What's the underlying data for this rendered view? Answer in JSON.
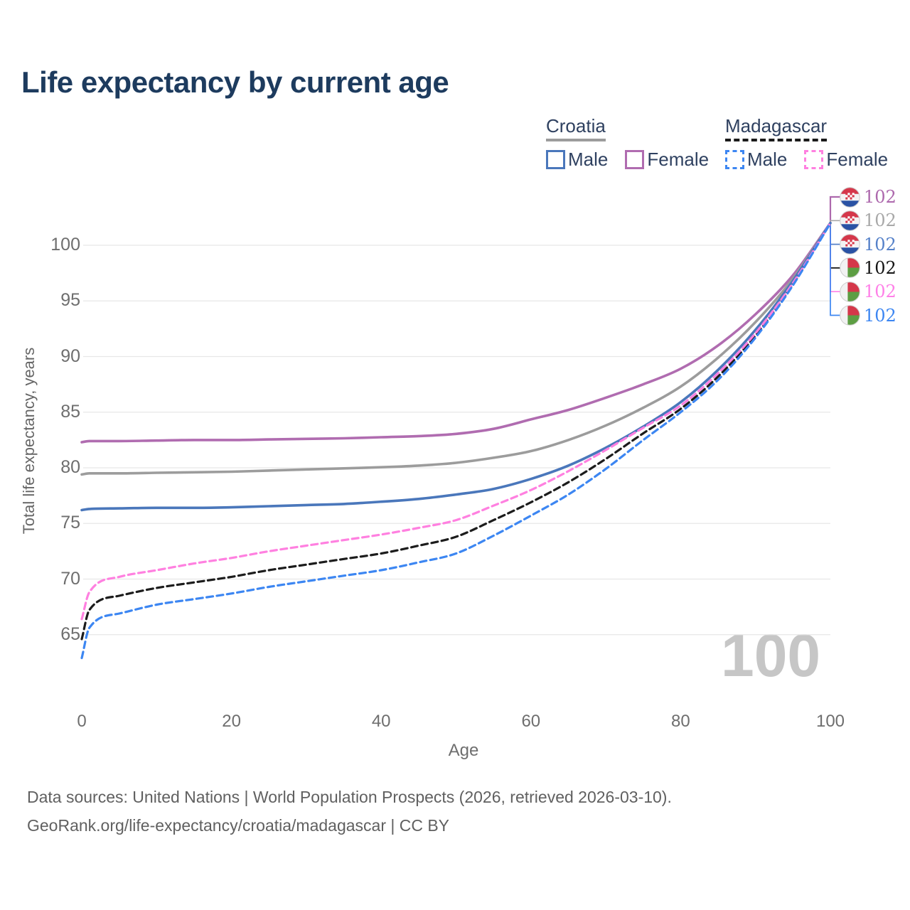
{
  "title": "Life expectancy by current age",
  "legend": {
    "groups": [
      {
        "label": "Croatia",
        "line_style": "solid",
        "underline_color": "#9c9c9c",
        "items": [
          {
            "label": "Male",
            "series": "croatia_male"
          },
          {
            "label": "Female",
            "series": "croatia_female"
          }
        ]
      },
      {
        "label": "Madagascar",
        "line_style": "dashed",
        "underline_color": "#1a1a1a",
        "items": [
          {
            "label": "Male",
            "series": "madagascar_male"
          },
          {
            "label": "Female",
            "series": "madagascar_female"
          }
        ]
      }
    ]
  },
  "y_axis": {
    "label": "Total life expectancy, years",
    "ticks": [
      100,
      95,
      90,
      85,
      80,
      75,
      70,
      65
    ]
  },
  "x_axis": {
    "label": "Age",
    "ticks": [
      0,
      20,
      40,
      60,
      80,
      100
    ]
  },
  "age_counter": "100",
  "end_labels": [
    {
      "series": "croatia_female",
      "flag": "croatia",
      "value": "102",
      "color": "#ad68ad"
    },
    {
      "series": "croatia_total",
      "flag": "croatia",
      "value": "102",
      "color": "#a8a8a8"
    },
    {
      "series": "croatia_male",
      "flag": "croatia",
      "value": "102",
      "color": "#5581c9"
    },
    {
      "series": "madagascar_total",
      "flag": "madagascar",
      "value": "102",
      "color": "#141414"
    },
    {
      "series": "madagascar_female",
      "flag": "madagascar",
      "value": "102",
      "color": "#ff80e8"
    },
    {
      "series": "madagascar_male",
      "flag": "madagascar",
      "value": "102",
      "color": "#3c86f2"
    }
  ],
  "footer": {
    "line1": "Data sources: United Nations | World Population Prospects (2026, retrieved 2026-03-10).",
    "line2": "GeoRank.org/life-expectancy/croatia/madagascar | CC BY"
  },
  "chart_data": {
    "type": "line",
    "title": "Life expectancy by current age",
    "xlabel": "Age",
    "ylabel": "Total life expectancy, years",
    "xlim": [
      0,
      100
    ],
    "ylim": [
      62,
      103
    ],
    "x_ticks": [
      0,
      20,
      40,
      60,
      80,
      100
    ],
    "y_ticks": [
      65,
      70,
      75,
      80,
      85,
      90,
      95,
      100
    ],
    "grid": "horizontal",
    "legend_position": "top-right",
    "x": [
      0,
      1,
      5,
      10,
      15,
      20,
      25,
      30,
      35,
      40,
      45,
      50,
      55,
      60,
      65,
      70,
      75,
      80,
      85,
      90,
      95,
      100
    ],
    "series": [
      {
        "key": "croatia_female",
        "name": "Croatia Female",
        "country": "Croatia",
        "sex": "Female",
        "color": "#b06cb0",
        "dash": false,
        "values": [
          82.3,
          82.4,
          82.4,
          82.45,
          82.5,
          82.5,
          82.55,
          82.6,
          82.65,
          82.75,
          82.85,
          83.05,
          83.5,
          84.35,
          85.2,
          86.3,
          87.5,
          88.9,
          91.0,
          93.8,
          97.3,
          102
        ]
      },
      {
        "key": "croatia_total",
        "name": "Croatia Total",
        "country": "Croatia",
        "sex": "Both",
        "color": "#9c9c9c",
        "dash": false,
        "values": [
          79.4,
          79.5,
          79.5,
          79.55,
          79.6,
          79.65,
          79.75,
          79.85,
          79.95,
          80.05,
          80.2,
          80.45,
          80.9,
          81.5,
          82.5,
          83.8,
          85.4,
          87.3,
          89.9,
          93.1,
          97.0,
          102
        ]
      },
      {
        "key": "croatia_male",
        "name": "Croatia Male",
        "country": "Croatia",
        "sex": "Male",
        "color": "#4a77bb",
        "dash": false,
        "values": [
          76.2,
          76.3,
          76.35,
          76.4,
          76.4,
          76.45,
          76.55,
          76.65,
          76.75,
          76.95,
          77.2,
          77.6,
          78.1,
          79.0,
          80.2,
          81.8,
          83.7,
          85.9,
          88.8,
          92.4,
          96.8,
          102
        ]
      },
      {
        "key": "madagascar_total",
        "name": "Madagascar Total",
        "country": "Madagascar",
        "sex": "Both",
        "color": "#1c1c1c",
        "dash": true,
        "values": [
          64.6,
          67.2,
          68.5,
          69.2,
          69.7,
          70.2,
          70.8,
          71.3,
          71.8,
          72.3,
          73.0,
          73.8,
          75.3,
          76.9,
          78.7,
          80.8,
          83.1,
          85.3,
          88.2,
          91.9,
          96.5,
          102
        ]
      },
      {
        "key": "madagascar_female",
        "name": "Madagascar Female",
        "country": "Madagascar",
        "sex": "Female",
        "color": "#ff80e0",
        "dash": true,
        "values": [
          66.4,
          68.8,
          70.2,
          70.8,
          71.4,
          71.9,
          72.5,
          73.0,
          73.5,
          74.0,
          74.6,
          75.3,
          76.6,
          78.0,
          79.7,
          81.6,
          83.6,
          85.6,
          88.5,
          92.1,
          96.6,
          102
        ]
      },
      {
        "key": "madagascar_male",
        "name": "Madagascar Male",
        "country": "Madagascar",
        "sex": "Male",
        "color": "#3c86f2",
        "dash": true,
        "values": [
          62.9,
          65.6,
          66.9,
          67.7,
          68.2,
          68.7,
          69.3,
          69.8,
          70.3,
          70.8,
          71.5,
          72.3,
          73.9,
          75.7,
          77.6,
          79.9,
          82.5,
          85.0,
          87.9,
          91.7,
          96.4,
          102
        ]
      }
    ]
  }
}
